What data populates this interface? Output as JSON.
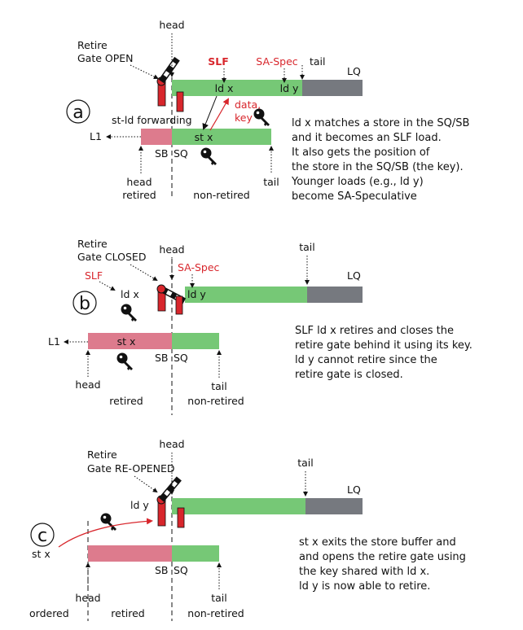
{
  "colors": {
    "green": "#76c876",
    "gray": "#76797f",
    "pink": "#dd7b8d",
    "red": "#d8262c",
    "black": "#111111"
  },
  "icons": [
    "key-icon",
    "gate-icon",
    "arrow-icon"
  ],
  "panel_a": {
    "circle": "a",
    "head": "head",
    "retire_gate": [
      "Retire",
      "Gate OPEN"
    ],
    "slf": "SLF",
    "sa_spec": "SA-Spec",
    "tail_top": "tail",
    "lq": "LQ",
    "ld_x": "ld x",
    "ld_y": "ld y",
    "data_key": [
      "data,",
      "key"
    ],
    "st_ld_forwarding": "st-ld forwarding",
    "st_x": "st x",
    "l1": "L1",
    "sb": "SB",
    "sq": "SQ",
    "head_retired": [
      "head",
      "retired"
    ],
    "non_retired": "non-retired",
    "tail_bottom": "tail",
    "description": [
      "ld x matches a store in the SQ/SB",
      "and it becomes an SLF load.",
      "It also gets the position of",
      "the store in the SQ/SB (the key).",
      "Younger loads (e.g., ld y)",
      "become SA-Speculative"
    ]
  },
  "panel_b": {
    "circle": "b",
    "retire_gate": [
      "Retire",
      "Gate CLOSED"
    ],
    "head": "head",
    "tail_top": "tail",
    "slf": "SLF",
    "sa_spec": "SA-Spec",
    "ld_x": "ld x",
    "ld_y": "ld y",
    "lq": "LQ",
    "l1": "L1",
    "st_x": "st x",
    "sb": "SB",
    "sq": "SQ",
    "head_bottom": "head",
    "retired": "retired",
    "tail_bottom": "tail",
    "non_retired": "non-retired",
    "description": [
      "SLF ld x retires and closes the",
      "retire gate behind it using its key.",
      "ld y cannot retire since the",
      "retire gate is closed."
    ]
  },
  "panel_c": {
    "circle": "c",
    "head": "head",
    "retire_gate": [
      "Retire",
      "Gate RE-OPENED"
    ],
    "tail_top": "tail",
    "lq": "LQ",
    "ld_y": "ld y",
    "st_x": "st x",
    "sb": "SB",
    "sq": "SQ",
    "head_bottom": "head",
    "ordered": "ordered",
    "retired": "retired",
    "tail_bottom": "tail",
    "non_retired": "non-retired",
    "description": [
      "st x exits the store buffer and",
      "and opens the retire gate using",
      "the key shared with ld x.",
      "ld y is now able to retire."
    ]
  }
}
